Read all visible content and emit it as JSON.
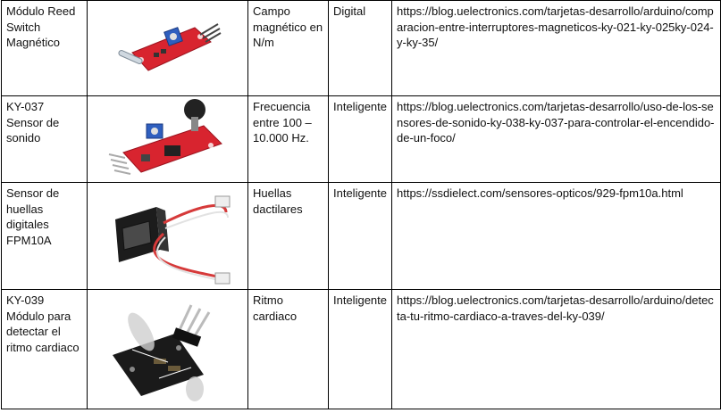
{
  "rows": [
    {
      "name": "Módulo Reed Switch Magnético",
      "measures": "Campo magnético en N/m",
      "type": "Digital",
      "url": "https://blog.uelectronics.com/tarjetas-desarrollo/arduino/comparacion-entre-interruptores-magneticos-ky-021-ky-025ky-024-y-ky-35/"
    },
    {
      "name": "KY-037 Sensor de sonido",
      "measures": "Frecuencia entre 100 – 10.000 Hz.",
      "type": "Inteligente",
      "url": "https://blog.uelectronics.com/tarjetas-desarrollo/uso-de-los-sensores-de-sonido-ky-038-ky-037-para-controlar-el-encendido-de-un-foco/"
    },
    {
      "name": "Sensor de huellas digitales FPM10A",
      "measures": "Huellas dactilares",
      "type": "Inteligente",
      "url": "https://ssdielect.com/sensores-opticos/929-fpm10a.html"
    },
    {
      "name": "KY-039 Módulo para detectar el ritmo cardiaco",
      "measures": "Ritmo cardiaco",
      "type": "Inteligente",
      "url": "https://blog.uelectronics.com/tarjetas-desarrollo/arduino/detecta-tu-ritmo-cardiaco-a-traves-del-ky-039/"
    }
  ],
  "images": {
    "row0": "reed-switch-module",
    "row1": "sound-sensor-module",
    "row2": "fingerprint-sensor-module",
    "row3": "heartbeat-sensor-module",
    "pcb_red": "#d8242f",
    "pcb_black": "#1a1a1a",
    "pot_blue": "#2f5fbf"
  }
}
